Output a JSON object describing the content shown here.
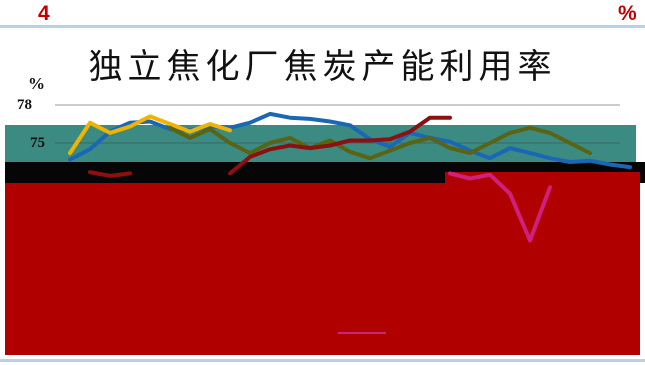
{
  "slide": {
    "number": "4",
    "corner_mark": "%"
  },
  "chart_data": {
    "type": "line",
    "title": "独立焦化厂焦炭产能利用率",
    "xlabel": "",
    "ylabel": "%",
    "yticks": [
      75,
      78
    ],
    "ylim": [
      58,
      79
    ],
    "grid": true,
    "series": [
      {
        "color": "#1a68b4",
        "values": [
          73.7,
          74.5,
          75.9,
          76.6,
          76.7,
          76.1,
          76.0,
          76.3,
          76.2,
          76.6,
          77.3,
          77.0,
          76.9,
          76.7,
          76.4,
          75.3,
          74.7,
          75.8,
          75.4,
          75.1,
          74.4,
          73.8,
          74.6,
          74.2,
          73.8,
          73.5,
          73.6,
          73.3,
          73.1
        ]
      },
      {
        "color": "#f0b400",
        "values": [
          74.2,
          76.6,
          75.8,
          76.3,
          77.1,
          76.5,
          75.9,
          76.5,
          76.0,
          null,
          null,
          null,
          null,
          null,
          null,
          null,
          null,
          null,
          null,
          null,
          null,
          null,
          null,
          null,
          null,
          null,
          null,
          null,
          null
        ]
      },
      {
        "color": "#5a6412",
        "values": [
          null,
          null,
          null,
          null,
          null,
          76.2,
          75.4,
          76.1,
          75.0,
          74.2,
          75.0,
          75.4,
          74.6,
          75.2,
          74.3,
          73.8,
          74.4,
          75.0,
          75.4,
          74.6,
          74.2,
          75.0,
          75.8,
          76.2,
          75.8,
          75.0,
          74.2,
          null,
          null
        ]
      },
      {
        "color": "#8c1010",
        "values": [
          null,
          72.7,
          72.4,
          72.6,
          null,
          null,
          null,
          null,
          72.6,
          73.9,
          74.5,
          74.8,
          74.6,
          74.8,
          75.2,
          75.2,
          75.3,
          75.9,
          77.0,
          77.0,
          null,
          null,
          null,
          null,
          null,
          null,
          null,
          null,
          null
        ]
      },
      {
        "color": "#d0207e",
        "values": [
          null,
          null,
          null,
          null,
          null,
          null,
          null,
          null,
          null,
          null,
          null,
          null,
          null,
          null,
          null,
          null,
          null,
          null,
          null,
          72.6,
          72.2,
          72.5,
          71.0,
          67.3,
          71.5,
          null,
          null,
          null,
          null
        ]
      }
    ]
  }
}
